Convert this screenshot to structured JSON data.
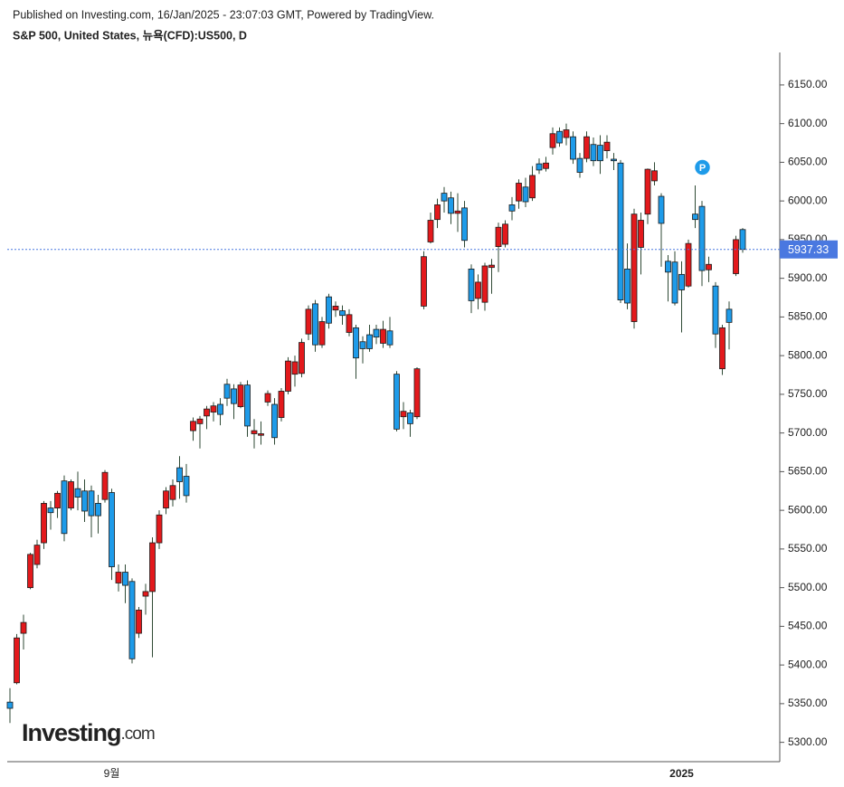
{
  "header": {
    "published": "Published on Investing.com, 16/Jan/2025 - 23:07:03 GMT, Powered by TradingView.",
    "instrument": "S&P 500, United States, 뉴욕(CFD):US500, D"
  },
  "logo": {
    "name": "Investing",
    "suffix": ".com"
  },
  "chart_data": {
    "type": "candlestick",
    "categories": [
      null,
      null,
      null,
      null,
      null,
      null,
      null,
      null,
      null,
      null,
      null,
      null,
      null,
      null,
      null,
      "9월",
      null,
      null,
      null,
      null,
      null,
      null,
      null,
      null,
      null,
      null,
      null,
      null,
      null,
      null,
      null,
      null,
      null,
      null,
      null,
      null,
      null,
      null,
      null,
      null,
      null,
      null,
      null,
      null,
      null,
      null,
      null,
      null,
      null,
      null,
      null,
      null,
      null,
      null,
      null,
      null,
      null,
      null,
      null,
      null,
      null,
      null,
      null,
      null,
      null,
      null,
      null,
      null,
      null,
      null,
      null,
      null,
      null,
      null,
      null,
      null,
      null,
      null,
      null,
      null,
      null,
      null,
      null,
      null,
      null,
      null,
      null,
      null,
      null,
      null,
      null,
      null,
      null,
      null,
      null,
      null,
      null,
      null,
      null,
      "2025",
      null,
      null,
      null,
      null,
      null,
      null,
      null,
      null,
      null
    ],
    "open": [
      5352,
      5377,
      5441,
      5500,
      5530,
      5558,
      5603,
      5603,
      5638,
      5603,
      5628,
      5625,
      5625,
      5609,
      5614,
      5623,
      5506,
      5520,
      5508,
      5441,
      5489,
      5495,
      5558,
      5603,
      5614,
      5655,
      5644,
      5703,
      5712,
      5722,
      5727,
      5737,
      5763,
      5757,
      5734,
      5762,
      5699,
      5697,
      5740,
      5737,
      5720,
      5754,
      5776,
      5777,
      5828,
      5867,
      5814,
      5876,
      5859,
      5858,
      5830,
      5836,
      5818,
      5827,
      5834,
      5816,
      5832,
      5776,
      5721,
      5726,
      5721,
      5864,
      5947,
      5976,
      6010,
      6004,
      5984,
      5991,
      5912,
      5874,
      5869,
      5914,
      5941,
      5944,
      5995,
      6000,
      6018,
      6004,
      6048,
      6042,
      6069,
      6090,
      6082,
      6083,
      6055,
      6055,
      6073,
      6072,
      6065,
      6054,
      6049,
      5912,
      5844,
      5940,
      5983,
      6026,
      6006,
      5922,
      5921,
      5905,
      5890,
      5983,
      5993,
      5911,
      5890,
      5783,
      5860,
      5906,
      5963
    ],
    "high": [
      5370,
      5440,
      5465,
      5545,
      5562,
      5612,
      5612,
      5625,
      5645,
      5640,
      5650,
      5640,
      5632,
      5620,
      5652,
      5628,
      5530,
      5530,
      5512,
      5475,
      5505,
      5565,
      5600,
      5630,
      5640,
      5670,
      5660,
      5720,
      5722,
      5735,
      5740,
      5745,
      5770,
      5763,
      5766,
      5768,
      5718,
      5715,
      5755,
      5745,
      5758,
      5798,
      5800,
      5822,
      5865,
      5872,
      5850,
      5880,
      5870,
      5865,
      5860,
      5840,
      5825,
      5840,
      5840,
      5845,
      5850,
      5780,
      5740,
      5730,
      5785,
      5935,
      5985,
      6003,
      6018,
      6012,
      6010,
      6000,
      5918,
      5905,
      5920,
      5925,
      5972,
      5975,
      6005,
      6028,
      6030,
      6045,
      6055,
      6057,
      6095,
      6095,
      6100,
      6090,
      6062,
      6090,
      6082,
      6085,
      6085,
      6062,
      6053,
      5945,
      5990,
      5985,
      6042,
      6050,
      6010,
      5930,
      5935,
      5922,
      5950,
      6020,
      6000,
      5928,
      5895,
      5840,
      5870,
      5955,
      5965
    ],
    "low": [
      5325,
      5375,
      5420,
      5498,
      5525,
      5550,
      5575,
      5590,
      5560,
      5600,
      5600,
      5585,
      5565,
      5570,
      5610,
      5510,
      5495,
      5480,
      5402,
      5435,
      5465,
      5410,
      5550,
      5595,
      5605,
      5615,
      5610,
      5690,
      5680,
      5705,
      5715,
      5710,
      5735,
      5718,
      5732,
      5695,
      5680,
      5685,
      5735,
      5685,
      5715,
      5750,
      5760,
      5772,
      5820,
      5805,
      5810,
      5835,
      5850,
      5840,
      5825,
      5770,
      5790,
      5805,
      5815,
      5810,
      5810,
      5702,
      5705,
      5695,
      5718,
      5860,
      5945,
      5965,
      5985,
      5970,
      5960,
      5940,
      5855,
      5860,
      5858,
      5880,
      5908,
      5940,
      5975,
      5990,
      5992,
      6000,
      6035,
      6038,
      6060,
      6070,
      6072,
      6048,
      6030,
      6050,
      6045,
      6035,
      6055,
      6040,
      5868,
      5860,
      5835,
      5905,
      5970,
      6020,
      5915,
      5870,
      5865,
      5830,
      5888,
      5965,
      5890,
      5895,
      5810,
      5775,
      5808,
      5903,
      5933
    ],
    "close": [
      5344,
      5435,
      5455,
      5543,
      5555,
      5609,
      5597,
      5622,
      5570,
      5637,
      5617,
      5599,
      5593,
      5593,
      5649,
      5527,
      5520,
      5503,
      5408,
      5471,
      5495,
      5558,
      5594,
      5625,
      5632,
      5637,
      5619,
      5715,
      5718,
      5731,
      5735,
      5724,
      5745,
      5738,
      5762,
      5709,
      5703,
      5699,
      5751,
      5694,
      5754,
      5793,
      5792,
      5817,
      5860,
      5814,
      5844,
      5842,
      5864,
      5852,
      5853,
      5797,
      5809,
      5809,
      5824,
      5834,
      5814,
      5705,
      5728,
      5712,
      5783,
      5928,
      5975,
      5995,
      6000,
      5984,
      5987,
      5949,
      5871,
      5895,
      5916,
      5917,
      5966,
      5970,
      5987,
      6023,
      5999,
      6033,
      6040,
      6049,
      6087,
      6075,
      6092,
      6054,
      6037,
      6083,
      6052,
      6052,
      6076,
      6052,
      5872,
      5868,
      5983,
      5975,
      6041,
      6039,
      5971,
      5908,
      5868,
      5885,
      5945,
      5976,
      5910,
      5918,
      5828,
      5836,
      5843,
      5950,
      5937.33
    ],
    "up_color": "#e3191c",
    "down_color": "#1e9be9",
    "last_price": 5937.33,
    "last_price_color": "#4a78e0",
    "marker": {
      "label": "P",
      "index": 101,
      "color": "#1e9be9"
    },
    "ylim": [
      5275,
      6192
    ],
    "yticks": [
      {
        "value": 5300,
        "label": "5300.00"
      },
      {
        "value": 5350,
        "label": "5350.00"
      },
      {
        "value": 5400,
        "label": "5400.00"
      },
      {
        "value": 5450,
        "label": "5450.00"
      },
      {
        "value": 5500,
        "label": "5500.00"
      },
      {
        "value": 5550,
        "label": "5550.00"
      },
      {
        "value": 5600,
        "label": "5600.00"
      },
      {
        "value": 5650,
        "label": "5650.00"
      },
      {
        "value": 5700,
        "label": "5700.00"
      },
      {
        "value": 5750,
        "label": "5750.00"
      },
      {
        "value": 5800,
        "label": "5800.00"
      },
      {
        "value": 5850,
        "label": "5850.00"
      },
      {
        "value": 5900,
        "label": "5900.00"
      },
      {
        "value": 5950,
        "label": "5950.00"
      },
      {
        "value": 6000,
        "label": "6000.00"
      },
      {
        "value": 6050,
        "label": "6050.00"
      },
      {
        "value": 6100,
        "label": "6100.00"
      },
      {
        "value": 6150,
        "label": "6150.00"
      }
    ]
  }
}
